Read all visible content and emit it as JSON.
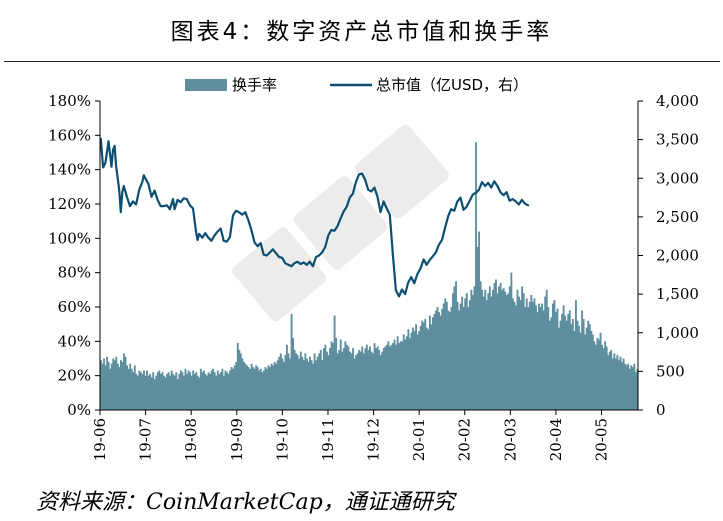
{
  "title": "图表4：数字资产总市值和换手率",
  "source": "资料来源：CoinMarketCap，通证通研究",
  "colors": {
    "bar": "#5f8f9f",
    "line": "#0d4f72",
    "axis": "#000000"
  },
  "chart_data": {
    "type": "bar+line",
    "legend": [
      "换手率",
      "总市值（亿USD，右）"
    ],
    "legend_position": "top-center",
    "grid": false,
    "y_left": {
      "min": 0,
      "max": 180,
      "step": 20,
      "unit": "%",
      "ticks": [
        "0%",
        "20%",
        "40%",
        "60%",
        "80%",
        "100%",
        "120%",
        "140%",
        "160%",
        "180%"
      ]
    },
    "y_right": {
      "min": 0,
      "max": 4000,
      "step": 500,
      "ticks": [
        "0",
        "500",
        "1,000",
        "1,500",
        "2,000",
        "2,500",
        "3,000",
        "3,500",
        "4,000"
      ]
    },
    "x_ticks": [
      "19-06",
      "19-07",
      "19-08",
      "19-09",
      "19-10",
      "19-11",
      "19-12",
      "20-01",
      "20-02",
      "20-03",
      "20-04",
      "20-05"
    ],
    "series": [
      {
        "name": "换手率",
        "type": "bar",
        "axis": "left",
        "values": [
          29,
          27,
          30,
          26,
          31,
          28,
          24,
          27,
          30,
          29,
          31,
          27,
          25,
          29,
          28,
          33,
          31,
          26,
          24,
          27,
          24,
          22,
          26,
          21,
          20,
          23,
          22,
          21,
          23,
          20,
          23,
          20,
          21,
          19,
          22,
          18,
          20,
          22,
          23,
          21,
          22,
          20,
          19,
          21,
          22,
          20,
          23,
          21,
          20,
          22,
          18,
          21,
          23,
          22,
          20,
          24,
          21,
          23,
          22,
          20,
          23,
          21,
          22,
          20,
          19,
          24,
          22,
          23,
          21,
          20,
          22,
          21,
          23,
          24,
          22,
          20,
          23,
          21,
          22,
          24,
          20,
          23,
          22,
          21,
          23,
          25,
          24,
          26,
          28,
          39,
          35,
          33,
          30,
          28,
          27,
          26,
          25,
          24,
          27,
          25,
          24,
          26,
          25,
          23,
          24,
          22,
          23,
          25,
          24,
          26,
          25,
          27,
          26,
          28,
          27,
          29,
          31,
          33,
          30,
          28,
          32,
          38,
          33,
          30,
          56,
          42,
          35,
          33,
          32,
          30,
          34,
          31,
          29,
          33,
          30,
          28,
          31,
          29,
          27,
          33,
          29,
          31,
          33,
          35,
          29,
          36,
          38,
          34,
          32,
          36,
          40,
          39,
          55,
          42,
          33,
          35,
          41,
          34,
          36,
          40,
          38,
          37,
          34,
          33,
          36,
          30,
          32,
          33,
          35,
          34,
          37,
          33,
          36,
          38,
          35,
          37,
          34,
          33,
          39,
          36,
          37,
          35,
          32,
          34,
          36,
          37,
          38,
          40,
          37,
          38,
          39,
          41,
          38,
          43,
          39,
          40,
          40,
          44,
          41,
          43,
          47,
          42,
          45,
          48,
          46,
          50,
          44,
          46,
          49,
          52,
          51,
          53,
          48,
          47,
          55,
          50,
          54,
          56,
          58,
          60,
          57,
          55,
          59,
          62,
          65,
          63,
          58,
          57,
          60,
          68,
          72,
          75,
          63,
          58,
          62,
          66,
          60,
          65,
          68,
          60,
          64,
          70,
          67,
          72,
          156,
          95,
          104,
          75,
          70,
          66,
          70,
          64,
          68,
          72,
          66,
          70,
          74,
          76,
          68,
          72,
          74,
          70,
          71,
          69,
          67,
          68,
          72,
          80,
          65,
          63,
          61,
          70,
          66,
          64,
          72,
          68,
          60,
          65,
          60,
          63,
          67,
          63,
          65,
          61,
          57,
          62,
          60,
          62,
          58,
          66,
          70,
          60,
          52,
          54,
          62,
          64,
          57,
          59,
          48,
          52,
          56,
          61,
          55,
          52,
          56,
          58,
          50,
          53,
          46,
          64,
          52,
          49,
          45,
          58,
          53,
          44,
          48,
          52,
          50,
          46,
          44,
          40,
          38,
          42,
          41,
          45,
          38,
          36,
          40,
          37,
          32,
          34,
          35,
          30,
          33,
          30,
          32,
          29,
          31,
          28,
          30,
          27,
          26,
          27,
          24,
          26,
          25,
          27,
          22,
          24
        ]
      },
      {
        "name": "总市值（亿USD，右）",
        "type": "line",
        "axis": "right",
        "points": [
          [
            0,
            3510
          ],
          [
            1.5,
            3140
          ],
          [
            3,
            3200
          ],
          [
            4,
            3330
          ],
          [
            5,
            3480
          ],
          [
            6,
            3320
          ],
          [
            7,
            3150
          ],
          [
            8,
            3370
          ],
          [
            9,
            3420
          ],
          [
            10,
            3160
          ],
          [
            12,
            2850
          ],
          [
            13,
            2560
          ],
          [
            14,
            2820
          ],
          [
            15,
            2900
          ],
          [
            17,
            2760
          ],
          [
            19,
            2640
          ],
          [
            21,
            2700
          ],
          [
            23,
            2660
          ],
          [
            25,
            2850
          ],
          [
            27,
            2950
          ],
          [
            28,
            3040
          ],
          [
            29,
            3000
          ],
          [
            31,
            2930
          ],
          [
            33,
            2760
          ],
          [
            35,
            2840
          ],
          [
            37,
            2720
          ],
          [
            39,
            2640
          ],
          [
            41,
            2640
          ],
          [
            43,
            2650
          ],
          [
            45,
            2600
          ],
          [
            47,
            2730
          ],
          [
            48,
            2600
          ],
          [
            50,
            2720
          ],
          [
            52,
            2690
          ],
          [
            54,
            2740
          ],
          [
            56,
            2730
          ],
          [
            58,
            2650
          ],
          [
            60,
            2610
          ],
          [
            62,
            2300
          ],
          [
            63,
            2200
          ],
          [
            64,
            2280
          ],
          [
            66,
            2230
          ],
          [
            68,
            2290
          ],
          [
            70,
            2230
          ],
          [
            72,
            2190
          ],
          [
            74,
            2260
          ],
          [
            76,
            2310
          ],
          [
            78,
            2350
          ],
          [
            80,
            2190
          ],
          [
            82,
            2180
          ],
          [
            84,
            2240
          ],
          [
            86,
            2520
          ],
          [
            88,
            2580
          ],
          [
            90,
            2560
          ],
          [
            92,
            2530
          ],
          [
            94,
            2560
          ],
          [
            96,
            2460
          ],
          [
            98,
            2330
          ],
          [
            100,
            2170
          ],
          [
            102,
            2120
          ],
          [
            104,
            2160
          ],
          [
            106,
            2010
          ],
          [
            108,
            2000
          ],
          [
            110,
            2040
          ],
          [
            112,
            2080
          ],
          [
            114,
            2030
          ],
          [
            116,
            1980
          ],
          [
            118,
            1970
          ],
          [
            120,
            1900
          ],
          [
            122,
            1880
          ],
          [
            124,
            1860
          ],
          [
            126,
            1900
          ],
          [
            128,
            1920
          ],
          [
            130,
            1890
          ],
          [
            132,
            1910
          ],
          [
            134,
            1880
          ],
          [
            136,
            1920
          ],
          [
            138,
            1860
          ],
          [
            140,
            1980
          ],
          [
            142,
            2000
          ],
          [
            144,
            2040
          ],
          [
            146,
            2110
          ],
          [
            148,
            2260
          ],
          [
            150,
            2330
          ],
          [
            152,
            2320
          ],
          [
            154,
            2380
          ],
          [
            156,
            2480
          ],
          [
            158,
            2570
          ],
          [
            160,
            2630
          ],
          [
            162,
            2750
          ],
          [
            164,
            2800
          ],
          [
            166,
            2950
          ],
          [
            168,
            3050
          ],
          [
            170,
            3060
          ],
          [
            172,
            2980
          ],
          [
            174,
            2850
          ],
          [
            176,
            2830
          ],
          [
            178,
            2880
          ],
          [
            180,
            2760
          ],
          [
            182,
            2560
          ],
          [
            184,
            2700
          ],
          [
            186,
            2610
          ],
          [
            188,
            2530
          ],
          [
            190,
            2020
          ],
          [
            192,
            1550
          ],
          [
            194,
            1470
          ],
          [
            196,
            1560
          ],
          [
            198,
            1500
          ],
          [
            200,
            1650
          ],
          [
            202,
            1720
          ],
          [
            204,
            1640
          ],
          [
            206,
            1760
          ],
          [
            208,
            1830
          ],
          [
            210,
            1950
          ],
          [
            212,
            1880
          ],
          [
            214,
            1940
          ],
          [
            216,
            1990
          ],
          [
            218,
            2040
          ],
          [
            220,
            2140
          ],
          [
            222,
            2200
          ],
          [
            224,
            2360
          ],
          [
            226,
            2510
          ],
          [
            228,
            2600
          ],
          [
            230,
            2580
          ],
          [
            232,
            2700
          ],
          [
            234,
            2750
          ],
          [
            236,
            2590
          ],
          [
            238,
            2630
          ],
          [
            240,
            2710
          ],
          [
            242,
            2790
          ],
          [
            244,
            2810
          ],
          [
            246,
            2850
          ],
          [
            248,
            2950
          ],
          [
            250,
            2900
          ],
          [
            252,
            2940
          ],
          [
            254,
            2880
          ],
          [
            256,
            2960
          ],
          [
            258,
            2900
          ],
          [
            260,
            2820
          ],
          [
            262,
            2780
          ],
          [
            264,
            2820
          ],
          [
            266,
            2710
          ],
          [
            268,
            2730
          ],
          [
            270,
            2700
          ],
          [
            272,
            2660
          ],
          [
            274,
            2720
          ],
          [
            276,
            2670
          ],
          [
            278,
            2650
          ]
        ]
      }
    ]
  }
}
